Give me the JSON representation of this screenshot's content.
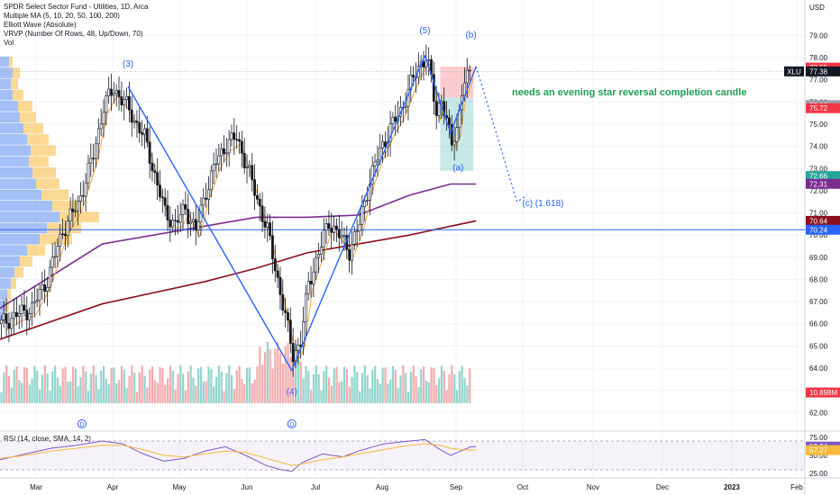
{
  "legend_lines": [
    "SPDR Select Sector Fund - Utilities, 1D, Arca",
    "Multiple MA (5, 10, 20, 50, 100, 200)",
    "Elliott Wave (Absolute)",
    "VRVP (Number Of Rows, 48, Up/Down, 70)",
    "Vol"
  ],
  "chart_data": [
    {
      "type": "candlestick",
      "title": "SPDR Select Sector Fund - Utilities, 1D, Arca",
      "axis_unit": "USD",
      "ylim": [
        61.2,
        80.6
      ],
      "y_ticks": [
        62,
        63,
        64,
        65,
        66,
        67,
        68,
        69,
        70,
        71,
        72,
        73,
        74,
        75,
        76,
        77,
        78,
        79
      ],
      "y_tick_labels": [
        "62.00",
        "63.00",
        "64.00",
        "65.00",
        "66.00",
        "67.00",
        "68.00",
        "69.00",
        "70.00",
        "71.00",
        "72.00",
        "73.00",
        "74.00",
        "75.00",
        "76.00",
        "77.00",
        "78.00",
        "79.00"
      ],
      "x_labels": [
        "Mar",
        "Apr",
        "May",
        "Jun",
        "Jul",
        "Aug",
        "Sep",
        "Oct",
        "Nov",
        "Dec",
        "2023",
        "Feb"
      ],
      "close_path": [
        [
          0,
          66.0
        ],
        [
          6,
          66.4
        ],
        [
          12,
          66.7
        ],
        [
          18,
          68.0
        ],
        [
          24,
          70.2
        ],
        [
          30,
          71.4
        ],
        [
          36,
          73.6
        ],
        [
          40,
          75.8
        ],
        [
          44,
          76.6
        ],
        [
          48,
          76.0
        ],
        [
          52,
          75.2
        ],
        [
          56,
          74.4
        ],
        [
          60,
          72.7
        ],
        [
          64,
          71.0
        ],
        [
          68,
          70.5
        ],
        [
          72,
          71.2
        ],
        [
          76,
          70.2
        ],
        [
          80,
          72.0
        ],
        [
          84,
          73.3
        ],
        [
          88,
          74.1
        ],
        [
          92,
          74.4
        ],
        [
          96,
          73.1
        ],
        [
          100,
          71.6
        ],
        [
          104,
          70.2
        ],
        [
          108,
          68.0
        ],
        [
          111,
          66.3
        ],
        [
          114,
          64.6
        ],
        [
          117,
          65.2
        ],
        [
          120,
          67.8
        ],
        [
          124,
          69.2
        ],
        [
          128,
          70.6
        ],
        [
          132,
          70.0
        ],
        [
          136,
          69.3
        ],
        [
          140,
          70.5
        ],
        [
          144,
          72.5
        ],
        [
          148,
          73.8
        ],
        [
          152,
          74.8
        ],
        [
          156,
          75.6
        ],
        [
          160,
          76.8
        ],
        [
          164,
          77.8
        ],
        [
          166,
          78.0
        ],
        [
          168,
          77.0
        ],
        [
          170,
          75.5
        ],
        [
          172,
          76.2
        ],
        [
          174,
          75.0
        ],
        [
          176,
          74.2
        ],
        [
          178,
          74.8
        ],
        [
          180,
          76.5
        ],
        [
          182,
          77.0
        ],
        [
          183,
          77.4
        ]
      ],
      "last_price": 77.38,
      "price_badges": [
        {
          "label": "77.55",
          "value": 77.55,
          "color": "#f23645"
        },
        {
          "label": "77.38",
          "value": 77.38,
          "color": "#131722",
          "ticker": "XLU"
        },
        {
          "label": "75.86",
          "value": 75.86,
          "color": "#9b9fa8"
        },
        {
          "label": "75.72",
          "value": 75.72,
          "color": "#f23645"
        },
        {
          "label": "72.66",
          "value": 72.66,
          "color": "#26a69a"
        },
        {
          "label": "72.31",
          "value": 72.31,
          "color": "#7b2c8f"
        },
        {
          "label": "70.64",
          "value": 70.64,
          "color": "#8b0f1c"
        },
        {
          "label": "70.24",
          "value": 70.24,
          "color": "#2962ff"
        },
        {
          "label": "10.898M",
          "value": 62.9,
          "color": "#f23645"
        }
      ],
      "moving_averages": [
        {
          "color": "#7b2c8f",
          "points": [
            [
              0,
              66.7
            ],
            [
              40,
              69.6
            ],
            [
              80,
              70.4
            ],
            [
              100,
              70.8
            ],
            [
              120,
              70.8
            ],
            [
              140,
              70.9
            ],
            [
              160,
              71.8
            ],
            [
              176,
              72.3
            ],
            [
              186,
              72.3
            ]
          ]
        },
        {
          "color": "#8b0f1c",
          "points": [
            [
              0,
              65.3
            ],
            [
              40,
              66.9
            ],
            [
              80,
              67.9
            ],
            [
              100,
              68.5
            ],
            [
              120,
              69.2
            ],
            [
              140,
              69.6
            ],
            [
              160,
              70.0
            ],
            [
              176,
              70.4
            ],
            [
              186,
              70.64
            ]
          ]
        }
      ],
      "horizontal_line": {
        "value": 70.24,
        "color": "#2962ff"
      },
      "wave_lines": [
        {
          "color": "#2962ff",
          "points": [
            [
              50,
              76.7
            ],
            [
              114,
              63.9
            ],
            [
              166,
              78.1
            ]
          ]
        },
        {
          "color": "#2962ff",
          "points": [
            [
              166,
              78.1
            ],
            [
              176,
              74.6
            ],
            [
              186,
              77.6
            ]
          ]
        }
      ],
      "projection_line": {
        "color": "#2962ff",
        "points": [
          [
            186,
            77.6
          ],
          [
            202,
            71.5
          ],
          [
            206,
            71.8
          ]
        ]
      },
      "wave_labels": [
        {
          "text": "(3)",
          "x": 50,
          "y": 77.6
        },
        {
          "text": "(4)",
          "x": 114,
          "y": 62.8
        },
        {
          "text": "(5)",
          "x": 166,
          "y": 79.1
        },
        {
          "text": "(b)",
          "x": 184,
          "y": 78.9
        },
        {
          "text": "(a)",
          "x": 179,
          "y": 72.9
        },
        {
          "text": "(c) (1.618)",
          "x": 204,
          "y": 71.3
        }
      ],
      "annotation": {
        "text": "needs an evening star reversal completion candle",
        "x": 200,
        "y": 76.3,
        "color": "#1e9e55"
      },
      "boxes": [
        {
          "x0": 172,
          "x1": 185,
          "y_top": 77.6,
          "y_bottom": 76.2,
          "color": "#f23645"
        },
        {
          "x0": 172,
          "x1": 185,
          "y_top": 76.2,
          "y_bottom": 72.9,
          "color": "#26a69a"
        }
      ],
      "dividend_markers": [
        {
          "x": 32,
          "label": "D"
        },
        {
          "x": 114,
          "label": "D"
        }
      ],
      "volume_profile": {
        "up_color": "#5b8def",
        "down_color": "#f7b93c",
        "rows": [
          {
            "price": 77.8,
            "up": 10,
            "down": 4
          },
          {
            "price": 77.3,
            "up": 14,
            "down": 8
          },
          {
            "price": 76.8,
            "up": 12,
            "down": 8
          },
          {
            "price": 76.3,
            "up": 14,
            "down": 12
          },
          {
            "price": 75.8,
            "up": 20,
            "down": 16
          },
          {
            "price": 75.3,
            "up": 22,
            "down": 18
          },
          {
            "price": 74.8,
            "up": 26,
            "down": 22
          },
          {
            "price": 74.3,
            "up": 30,
            "down": 24
          },
          {
            "price": 73.8,
            "up": 34,
            "down": 28
          },
          {
            "price": 73.3,
            "up": 32,
            "down": 22
          },
          {
            "price": 72.8,
            "up": 36,
            "down": 26
          },
          {
            "price": 72.3,
            "up": 40,
            "down": 26
          },
          {
            "price": 71.8,
            "up": 46,
            "down": 30
          },
          {
            "price": 71.3,
            "up": 58,
            "down": 32
          },
          {
            "price": 70.8,
            "up": 66,
            "down": 44
          },
          {
            "price": 70.3,
            "up": 52,
            "down": 38
          },
          {
            "price": 69.8,
            "up": 44,
            "down": 36
          },
          {
            "price": 69.3,
            "up": 30,
            "down": 20
          },
          {
            "price": 68.8,
            "up": 22,
            "down": 14
          },
          {
            "price": 68.3,
            "up": 16,
            "down": 10
          },
          {
            "price": 67.8,
            "up": 12,
            "down": 6
          },
          {
            "price": 67.3,
            "up": 8,
            "down": 4
          },
          {
            "price": 66.8,
            "up": 6,
            "down": 4
          },
          {
            "price": 66.3,
            "up": 4,
            "down": 2
          }
        ]
      }
    },
    {
      "type": "line",
      "title": "RSI (14, close, SMA, 14, 2)",
      "ylim": [
        20,
        80
      ],
      "y_ticks": [
        25,
        50,
        75
      ],
      "y_tick_labels": [
        "25.00",
        "50.00",
        "75.00"
      ],
      "levels": [
        70,
        30
      ],
      "series": [
        {
          "color": "#7e57c2",
          "points": [
            [
              0,
              44
            ],
            [
              10,
              52
            ],
            [
              20,
              60
            ],
            [
              30,
              64
            ],
            [
              40,
              70
            ],
            [
              48,
              66
            ],
            [
              56,
              52
            ],
            [
              64,
              42
            ],
            [
              72,
              46
            ],
            [
              80,
              56
            ],
            [
              88,
              62
            ],
            [
              96,
              50
            ],
            [
              104,
              36
            ],
            [
              110,
              30
            ],
            [
              114,
              28
            ],
            [
              118,
              40
            ],
            [
              126,
              52
            ],
            [
              134,
              48
            ],
            [
              140,
              56
            ],
            [
              150,
              66
            ],
            [
              160,
              70
            ],
            [
              166,
              72
            ],
            [
              172,
              58
            ],
            [
              176,
              50
            ],
            [
              180,
              56
            ],
            [
              184,
              62
            ],
            [
              186,
              62.24
            ]
          ]
        },
        {
          "color": "#f7b93c",
          "points": [
            [
              0,
              46
            ],
            [
              10,
              50
            ],
            [
              20,
              56
            ],
            [
              30,
              60
            ],
            [
              40,
              64
            ],
            [
              48,
              64
            ],
            [
              56,
              58
            ],
            [
              64,
              50
            ],
            [
              72,
              48
            ],
            [
              80,
              52
            ],
            [
              88,
              56
            ],
            [
              96,
              54
            ],
            [
              104,
              46
            ],
            [
              110,
              40
            ],
            [
              114,
              36
            ],
            [
              118,
              38
            ],
            [
              126,
              44
            ],
            [
              134,
              48
            ],
            [
              140,
              52
            ],
            [
              150,
              58
            ],
            [
              160,
              64
            ],
            [
              166,
              66
            ],
            [
              172,
              64
            ],
            [
              176,
              60
            ],
            [
              180,
              58
            ],
            [
              184,
              57.5
            ],
            [
              186,
              57.27
            ]
          ]
        }
      ],
      "badges": [
        {
          "label": "62.24",
          "value": 62.24,
          "color": "#7e57c2"
        },
        {
          "label": "57.27",
          "value": 57.27,
          "color": "#f7b93c"
        }
      ]
    }
  ]
}
